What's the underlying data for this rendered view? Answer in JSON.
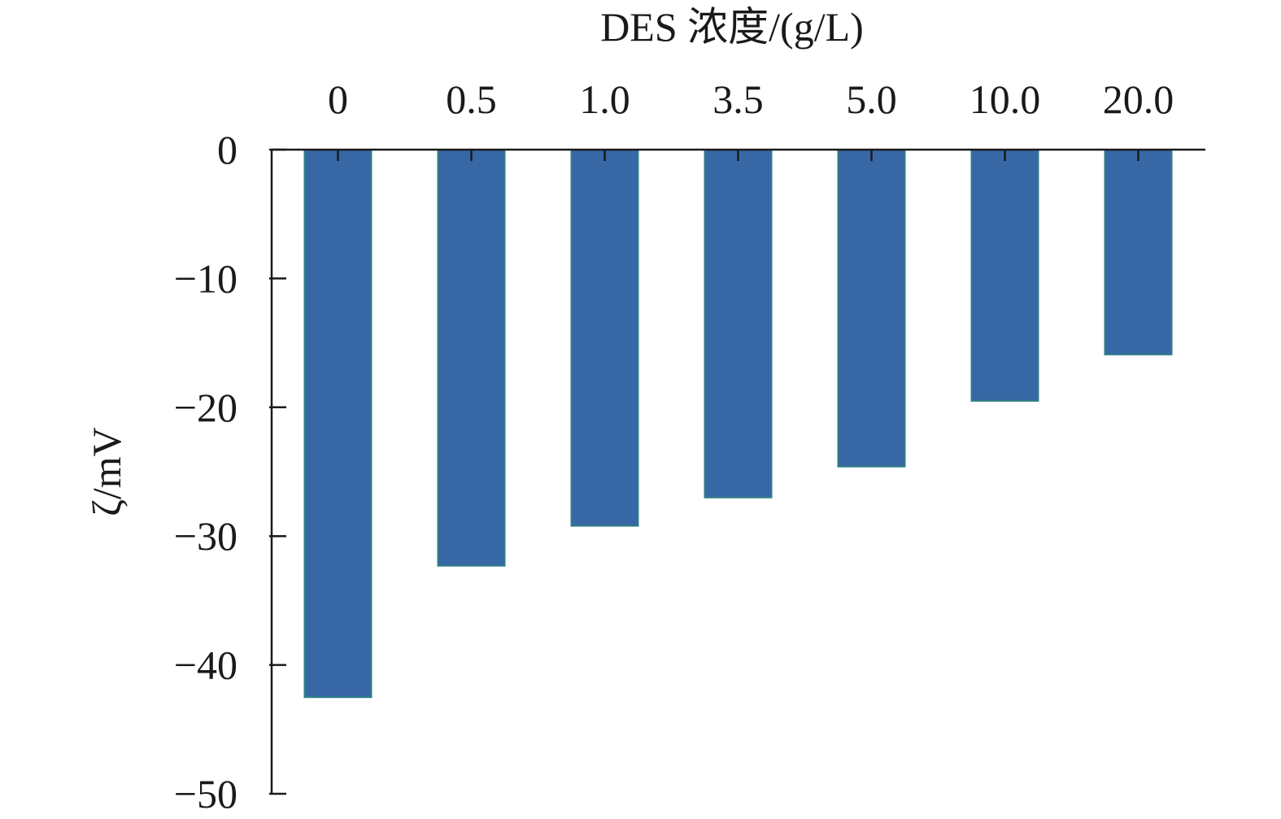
{
  "chart_data": {
    "type": "bar",
    "xlabel": "DES 浓度/(g/L)",
    "ylabel": "ζ/mV",
    "categories": [
      "0",
      "0.5",
      "1.0",
      "3.5",
      "5.0",
      "10.0",
      "20.0"
    ],
    "values": [
      -42.5,
      -32.3,
      -29.2,
      -27.0,
      -24.6,
      -19.5,
      -15.9
    ],
    "ylim": [
      -50,
      0
    ],
    "yticks": [
      0,
      -10,
      -20,
      -30,
      -40,
      -50
    ],
    "ytick_labels": [
      "0",
      "−10",
      "−20",
      "−30",
      "−40",
      "−50"
    ],
    "xaxis_position": "top",
    "grid": false,
    "legend": "none",
    "colors": {
      "bar_fill": "#3867a6",
      "bar_edge": "#2f7f86",
      "axis": "#1a1a1a"
    }
  }
}
